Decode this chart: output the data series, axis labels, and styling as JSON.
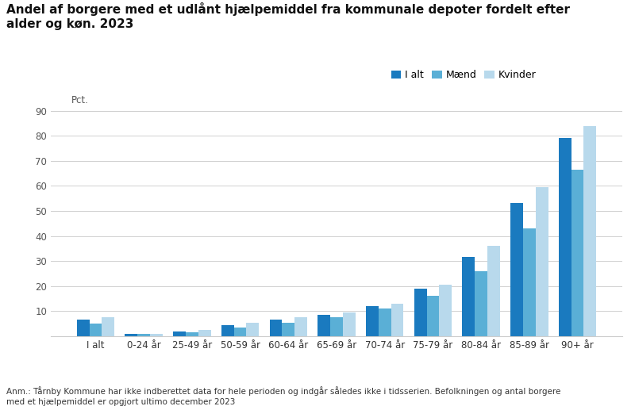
{
  "title": "Andel af borgere med et udlånt hjælpemiddel fra kommunale depoter fordelt efter\nalder og køn. 2023",
  "categories": [
    "I alt",
    "0-24 år",
    "25-49 år",
    "50-59 år",
    "60-64 år",
    "65-69 år",
    "70-74 år",
    "75-79 år",
    "80-84 år",
    "85-89 år",
    "90+ år"
  ],
  "i_alt": [
    6.5,
    1.0,
    2.0,
    4.5,
    6.5,
    8.5,
    12.0,
    19.0,
    31.5,
    53.0,
    79.0
  ],
  "maend": [
    5.0,
    1.0,
    1.5,
    3.5,
    5.5,
    7.5,
    11.0,
    16.0,
    26.0,
    43.0,
    66.5
  ],
  "kvinder": [
    7.5,
    1.0,
    2.5,
    5.5,
    7.5,
    9.5,
    13.0,
    20.5,
    36.0,
    59.5,
    84.0
  ],
  "color_i_alt": "#1a7abf",
  "color_maend": "#5aafd6",
  "color_kvinder": "#b8d9ec",
  "ylim": [
    0,
    90
  ],
  "yticks": [
    0,
    10,
    20,
    30,
    40,
    50,
    60,
    70,
    80,
    90
  ],
  "legend_labels": [
    "I alt",
    "Mænd",
    "Kvinder"
  ],
  "footnote": "Anm.: Tårnby Kommune har ikke indberettet data for hele perioden og indgår således ikke i tidsserien. Befolkningen og antal borgere\nmed et hjælpemiddel er opgjort ultimo december 2023",
  "background_color": "#ffffff"
}
